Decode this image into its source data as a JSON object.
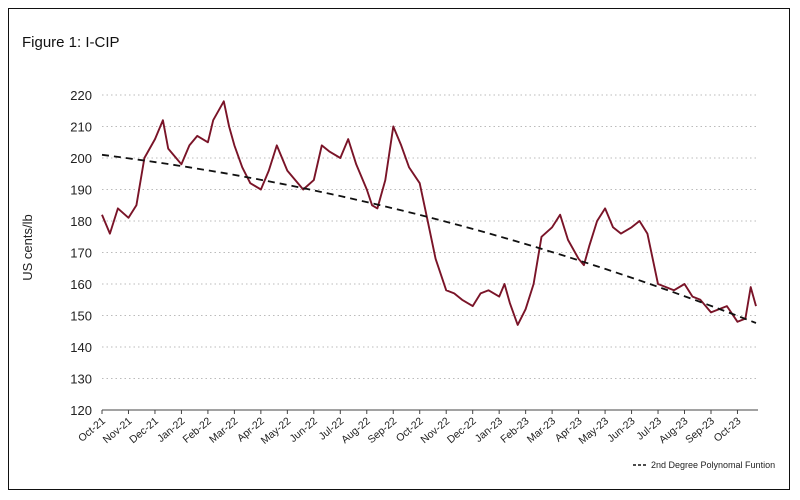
{
  "chart_data": {
    "type": "line",
    "title": "Figure 1: I-CIP",
    "ylabel": "US cents/lb",
    "xlabel": "",
    "ylim": [
      120,
      220
    ],
    "yticks": [
      120,
      130,
      140,
      150,
      160,
      170,
      180,
      190,
      200,
      210,
      220
    ],
    "grid": "horizontal dotted",
    "legend_position": "bottom-right",
    "x_labels": [
      "Oct-21",
      "Nov-21",
      "Dec-21",
      "Jan-22",
      "Feb-22",
      "Mar-22",
      "Apr-22",
      "May-22",
      "Jun-22",
      "Jul-22",
      "Aug-22",
      "Sep-22",
      "Oct-22",
      "Nov-22",
      "Dec-22",
      "Jan-23",
      "Feb-23",
      "Mar-23",
      "Apr-23",
      "May-23",
      "Jun-23",
      "Jul-23",
      "Aug-23",
      "Sep-23",
      "Oct-23"
    ],
    "series": [
      {
        "name": "",
        "color": "#7a1428",
        "style": "solid",
        "t": [
          0,
          0.3,
          0.6,
          1,
          1.3,
          1.6,
          2,
          2.3,
          2.5,
          2.8,
          3,
          3.3,
          3.6,
          4,
          4.2,
          4.6,
          4.8,
          5,
          5.3,
          5.6,
          6,
          6.3,
          6.6,
          7,
          7.3,
          7.6,
          8,
          8.3,
          8.6,
          9,
          9.3,
          9.6,
          10,
          10.2,
          10.4,
          10.7,
          11,
          11.3,
          11.6,
          12,
          12.3,
          12.6,
          13,
          13.3,
          13.6,
          14,
          14.3,
          14.6,
          15,
          15.2,
          15.4,
          15.7,
          16,
          16.3,
          16.6,
          17,
          17.3,
          17.6,
          18,
          18.2,
          18.4,
          18.7,
          19,
          19.3,
          19.6,
          20,
          20.3,
          20.6,
          21,
          21.3,
          21.6,
          22,
          22.3,
          22.6,
          23,
          23.3,
          23.6,
          24,
          24.3,
          24.5,
          24.7
        ],
        "y": [
          182,
          176,
          184,
          181,
          185,
          200,
          206,
          212,
          203,
          200,
          198,
          204,
          207,
          205,
          212,
          218,
          210,
          204,
          197,
          192,
          190,
          196,
          204,
          196,
          193,
          190,
          193,
          204,
          202,
          200,
          206,
          198,
          190,
          185,
          184,
          193,
          210,
          204,
          197,
          192,
          180,
          168,
          158,
          157,
          155,
          153,
          157,
          158,
          156,
          160,
          154,
          147,
          152,
          160,
          175,
          178,
          182,
          174,
          168,
          166,
          172,
          180,
          184,
          178,
          176,
          178,
          180,
          176,
          160,
          159,
          158,
          160,
          156,
          155,
          151,
          152,
          153,
          148,
          149,
          159,
          153
        ]
      },
      {
        "name": "2nd Degree Polynomal Funtion",
        "color": "#111111",
        "style": "dashed",
        "t": [
          0,
          24.7
        ],
        "poly": [
          201,
          -1.05,
          -0.045
        ]
      }
    ]
  },
  "legend": {
    "text": "2nd Degree Polynomal Funtion"
  }
}
